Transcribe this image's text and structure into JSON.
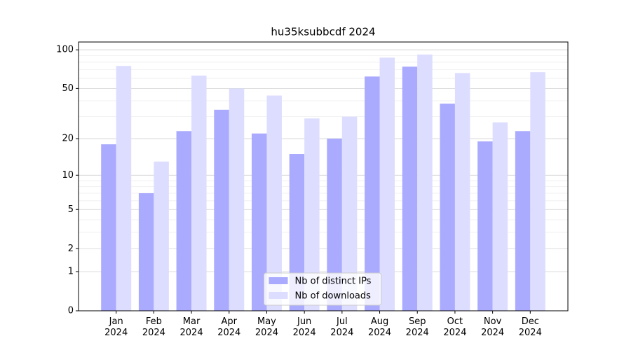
{
  "chart_data": {
    "type": "bar",
    "title": "hu35ksubbcdf 2024",
    "scale": "log1p",
    "categories": [
      "Jan\n2024",
      "Feb\n2024",
      "Mar\n2024",
      "Apr\n2024",
      "May\n2024",
      "Jun\n2024",
      "Jul\n2024",
      "Aug\n2024",
      "Sep\n2024",
      "Oct\n2024",
      "Nov\n2024",
      "Dec\n2024"
    ],
    "series": [
      {
        "name": "Nb of distinct IPs",
        "color": "#aaaaff",
        "values": [
          18,
          7,
          23,
          34,
          22,
          15,
          20,
          62,
          74,
          38,
          19,
          23
        ]
      },
      {
        "name": "Nb of downloads",
        "color": "#ddddff",
        "values": [
          75,
          13,
          63,
          50,
          44,
          29,
          30,
          87,
          92,
          66,
          27,
          67
        ]
      }
    ],
    "ylim": [
      0,
      115
    ],
    "yticks": [
      0,
      1,
      2,
      5,
      10,
      20,
      50,
      100
    ],
    "minor_yticks": [
      3,
      4,
      6,
      7,
      8,
      9,
      30,
      40,
      60,
      70,
      80,
      90
    ],
    "grid": true,
    "legend": "lower center"
  }
}
